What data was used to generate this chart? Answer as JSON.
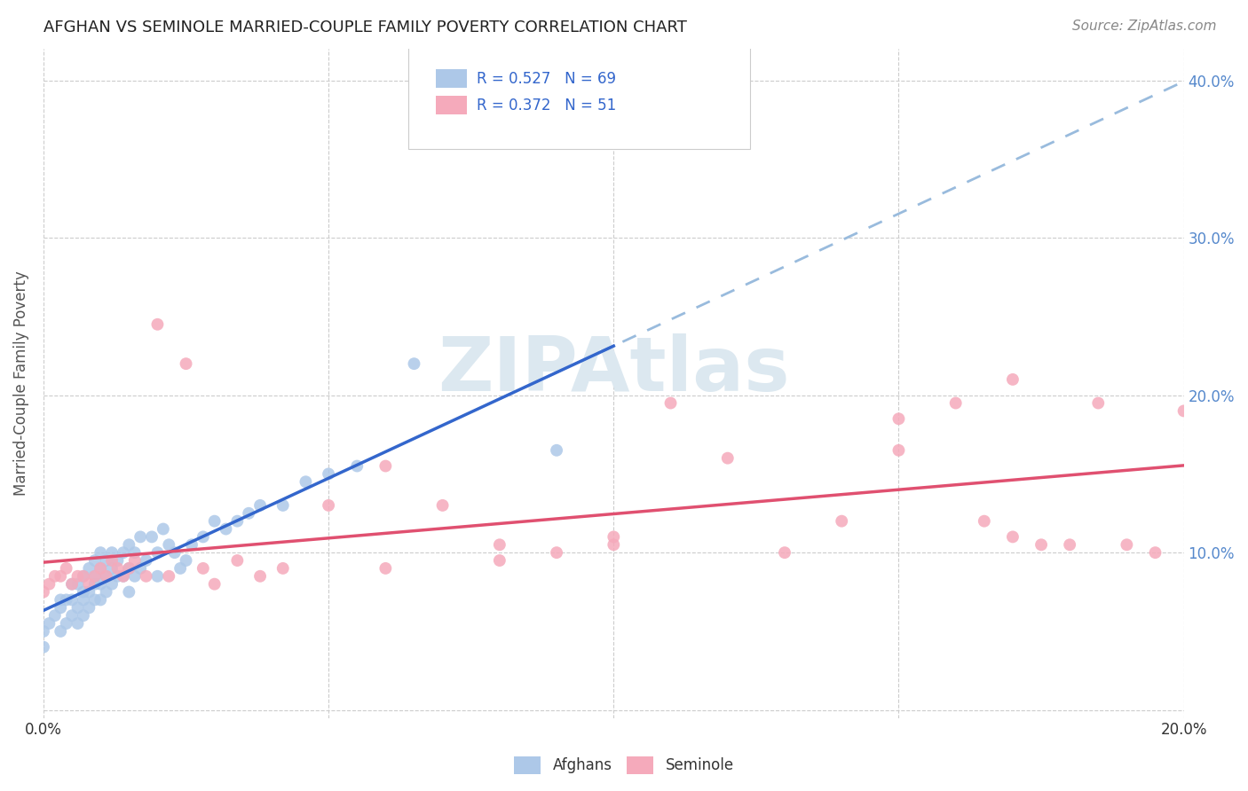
{
  "title": "AFGHAN VS SEMINOLE MARRIED-COUPLE FAMILY POVERTY CORRELATION CHART",
  "source": "Source: ZipAtlas.com",
  "ylabel": "Married-Couple Family Poverty",
  "xmin": 0.0,
  "xmax": 0.2,
  "ymin": -0.005,
  "ymax": 0.42,
  "xtick_positions": [
    0.0,
    0.05,
    0.1,
    0.15,
    0.2
  ],
  "xtick_labels": [
    "0.0%",
    "",
    "",
    "",
    "20.0%"
  ],
  "ytick_positions": [
    0.0,
    0.1,
    0.2,
    0.3,
    0.4
  ],
  "ytick_labels": [
    "",
    "10.0%",
    "20.0%",
    "30.0%",
    "40.0%"
  ],
  "afghans_R": 0.527,
  "afghans_N": 69,
  "seminole_R": 0.372,
  "seminole_N": 51,
  "afghans_color": "#adc8e8",
  "seminole_color": "#f5aabb",
  "trend_afghan_color": "#3366cc",
  "trend_seminole_color": "#e05070",
  "dashed_color": "#99bbdd",
  "watermark_text": "ZIPAtlas",
  "watermark_color": "#dce8f0",
  "afghans_x": [
    0.0,
    0.0,
    0.001,
    0.002,
    0.003,
    0.003,
    0.003,
    0.004,
    0.004,
    0.005,
    0.005,
    0.005,
    0.006,
    0.006,
    0.006,
    0.007,
    0.007,
    0.007,
    0.007,
    0.008,
    0.008,
    0.008,
    0.009,
    0.009,
    0.009,
    0.009,
    0.01,
    0.01,
    0.01,
    0.01,
    0.011,
    0.011,
    0.011,
    0.012,
    0.012,
    0.012,
    0.013,
    0.013,
    0.014,
    0.014,
    0.015,
    0.015,
    0.015,
    0.016,
    0.016,
    0.017,
    0.017,
    0.018,
    0.019,
    0.02,
    0.02,
    0.021,
    0.022,
    0.023,
    0.024,
    0.025,
    0.026,
    0.028,
    0.03,
    0.032,
    0.034,
    0.036,
    0.038,
    0.042,
    0.046,
    0.05,
    0.055,
    0.065,
    0.09
  ],
  "afghans_y": [
    0.04,
    0.05,
    0.055,
    0.06,
    0.05,
    0.065,
    0.07,
    0.055,
    0.07,
    0.06,
    0.07,
    0.08,
    0.055,
    0.065,
    0.08,
    0.06,
    0.07,
    0.075,
    0.085,
    0.065,
    0.075,
    0.09,
    0.07,
    0.08,
    0.085,
    0.095,
    0.07,
    0.08,
    0.09,
    0.1,
    0.075,
    0.085,
    0.095,
    0.08,
    0.09,
    0.1,
    0.085,
    0.095,
    0.085,
    0.1,
    0.075,
    0.09,
    0.105,
    0.085,
    0.1,
    0.09,
    0.11,
    0.095,
    0.11,
    0.085,
    0.1,
    0.115,
    0.105,
    0.1,
    0.09,
    0.095,
    0.105,
    0.11,
    0.12,
    0.115,
    0.12,
    0.125,
    0.13,
    0.13,
    0.145,
    0.15,
    0.155,
    0.22,
    0.165
  ],
  "seminole_x": [
    0.0,
    0.001,
    0.002,
    0.003,
    0.004,
    0.005,
    0.006,
    0.007,
    0.008,
    0.009,
    0.01,
    0.011,
    0.012,
    0.013,
    0.014,
    0.015,
    0.016,
    0.018,
    0.02,
    0.022,
    0.025,
    0.028,
    0.03,
    0.034,
    0.038,
    0.042,
    0.05,
    0.06,
    0.07,
    0.08,
    0.09,
    0.1,
    0.11,
    0.12,
    0.13,
    0.14,
    0.15,
    0.16,
    0.165,
    0.17,
    0.175,
    0.18,
    0.185,
    0.19,
    0.195,
    0.2,
    0.06,
    0.08,
    0.1,
    0.15,
    0.17
  ],
  "seminole_y": [
    0.075,
    0.08,
    0.085,
    0.085,
    0.09,
    0.08,
    0.085,
    0.085,
    0.08,
    0.085,
    0.09,
    0.085,
    0.095,
    0.09,
    0.085,
    0.09,
    0.095,
    0.085,
    0.245,
    0.085,
    0.22,
    0.09,
    0.08,
    0.095,
    0.085,
    0.09,
    0.13,
    0.09,
    0.13,
    0.095,
    0.1,
    0.105,
    0.195,
    0.16,
    0.1,
    0.12,
    0.165,
    0.195,
    0.12,
    0.11,
    0.105,
    0.105,
    0.195,
    0.105,
    0.1,
    0.19,
    0.155,
    0.105,
    0.11,
    0.185,
    0.21
  ],
  "trend_afghan_x_solid_start": 0.0,
  "trend_afghan_x_solid_end": 0.1,
  "trend_afghan_x_dashed_start": 0.08,
  "trend_afghan_x_dashed_end": 0.2
}
